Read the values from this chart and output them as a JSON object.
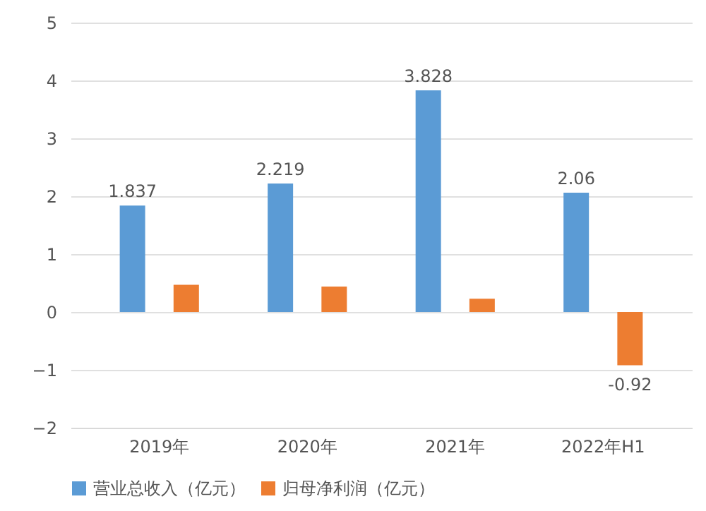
{
  "chart_data": {
    "type": "bar",
    "categories": [
      "2019年",
      "2020年",
      "2021年",
      "2022年H1"
    ],
    "series": [
      {
        "name": "营业总收入（亿元）",
        "color": "#5b9bd5",
        "values": [
          1.837,
          2.219,
          3.828,
          2.06
        ],
        "value_labels": [
          "1.837",
          "2.219",
          "3.828",
          "2.06"
        ]
      },
      {
        "name": "归母净利润（亿元）",
        "color": "#ed7d31",
        "values": [
          0.47,
          0.44,
          0.23,
          -0.92
        ],
        "value_labels": [
          null,
          null,
          null,
          "-0.92"
        ]
      }
    ],
    "ylim": [
      -2,
      5
    ],
    "yticks": [
      -2,
      -1,
      0,
      1,
      2,
      3,
      4,
      5
    ],
    "grid": "y",
    "legend": "bottom"
  }
}
